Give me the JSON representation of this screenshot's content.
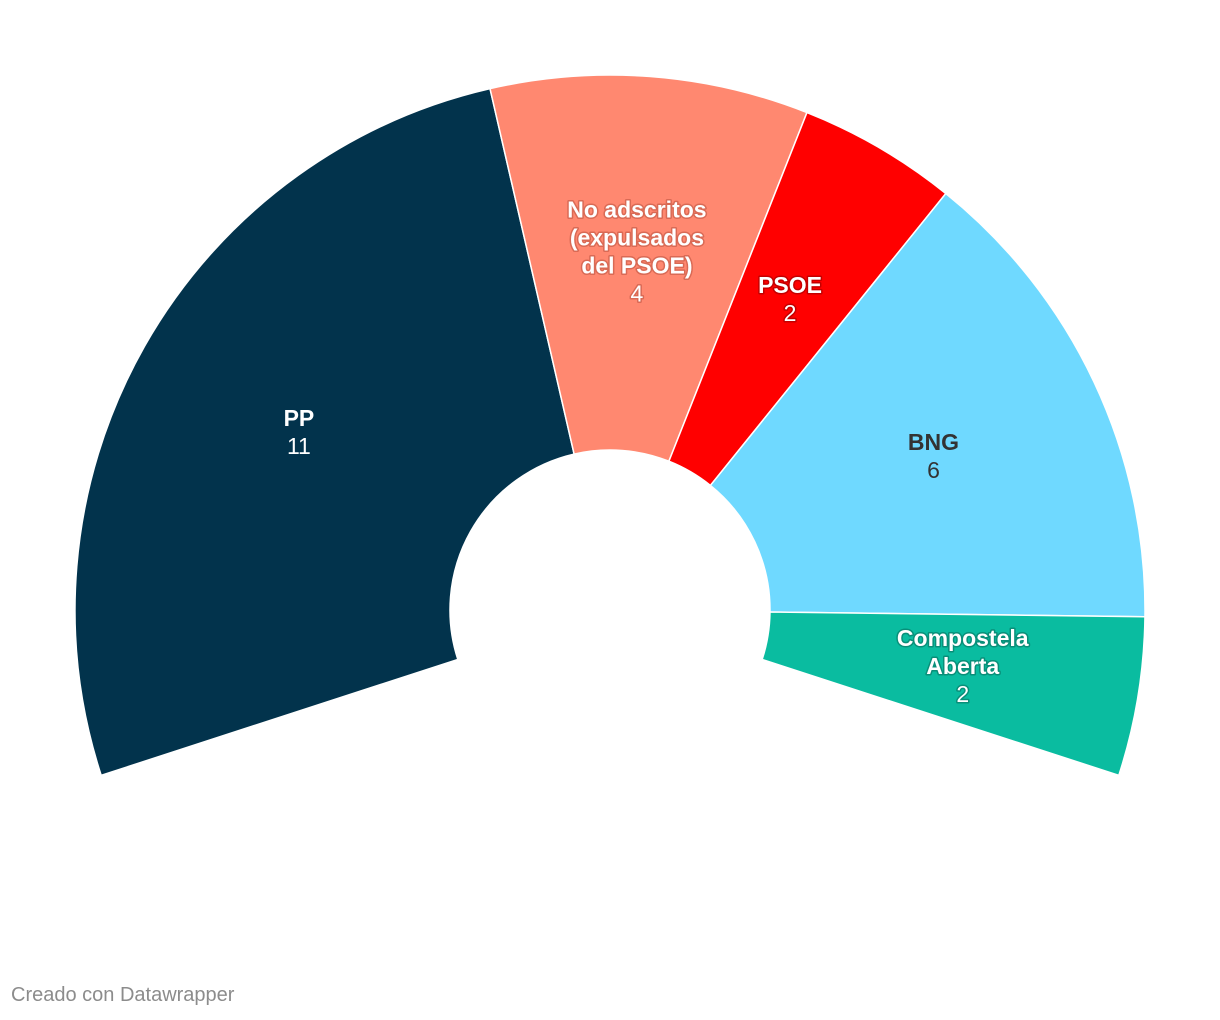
{
  "chart_data": {
    "type": "pie",
    "variant": "parliament-arc",
    "arc_degrees": 216,
    "title": "",
    "slices": [
      {
        "lines": [
          "PP"
        ],
        "value": 11,
        "color": "#02334c",
        "text_color": "#ffffff",
        "text_halo": "#02334c"
      },
      {
        "lines": [
          "No adscritos",
          "(expulsados",
          "del PSOE)"
        ],
        "value": 4,
        "color": "#ff8870",
        "text_color": "#ffffff",
        "text_halo": "#d96a55"
      },
      {
        "lines": [
          "PSOE"
        ],
        "value": 2,
        "color": "#ff0000",
        "text_color": "#ffffff",
        "text_halo": "#c40000"
      },
      {
        "lines": [
          "BNG"
        ],
        "value": 6,
        "color": "#6fd9ff",
        "text_color": "#333333",
        "text_halo": "#6fd9ff"
      },
      {
        "lines": [
          "Compostela",
          "Aberta"
        ],
        "value": 2,
        "color": "#0abca0",
        "text_color": "#ffffff",
        "text_halo": "#088f79"
      }
    ]
  },
  "footer": {
    "credit": "Creado con Datawrapper"
  }
}
